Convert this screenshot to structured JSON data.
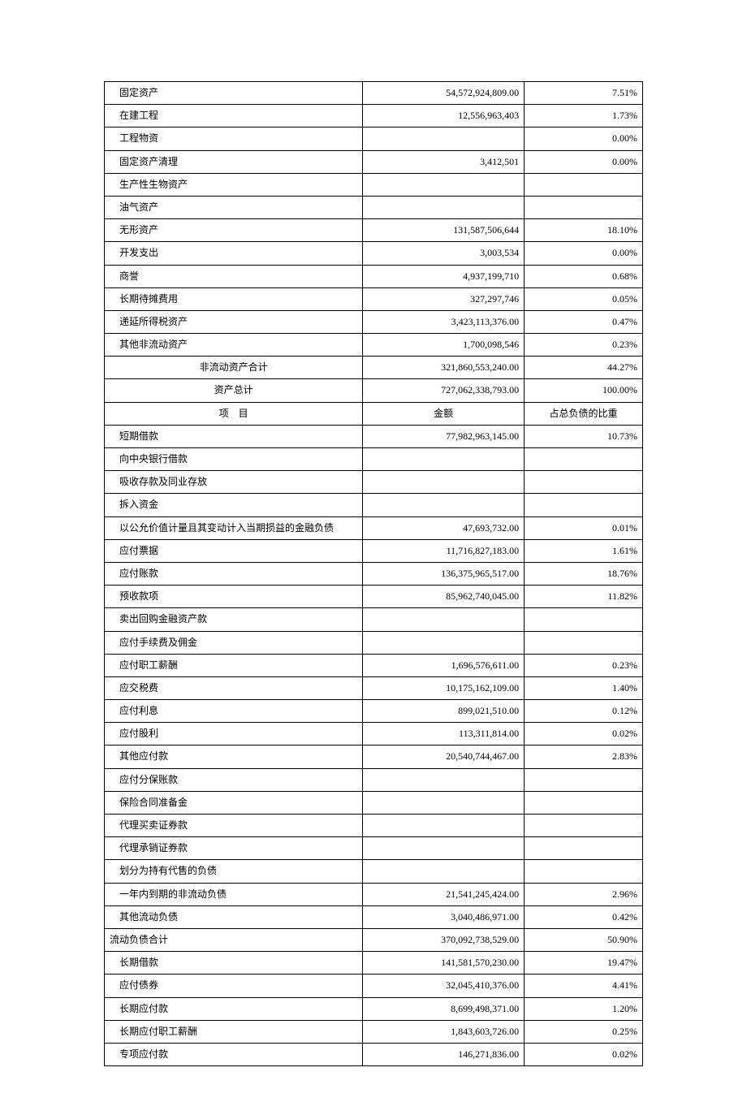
{
  "table": {
    "columns": {
      "item_width": "48%",
      "amount_width": "30%",
      "percent_width": "22%"
    },
    "rows": [
      {
        "item": "固定资产",
        "amount": "54,572,924,809.00",
        "percent": "7.51%",
        "indent": true
      },
      {
        "item": "在建工程",
        "amount": "12,556,963,403",
        "percent": "1.73%",
        "indent": true
      },
      {
        "item": "工程物资",
        "amount": "",
        "percent": "0.00%",
        "indent": true
      },
      {
        "item": "固定资产清理",
        "amount": "3,412,501",
        "percent": "0.00%",
        "indent": true
      },
      {
        "item": "生产性生物资产",
        "amount": "",
        "percent": "",
        "indent": true
      },
      {
        "item": "油气资产",
        "amount": "",
        "percent": "",
        "indent": true
      },
      {
        "item": "无形资产",
        "amount": "131,587,506,644",
        "percent": "18.10%",
        "indent": true
      },
      {
        "item": "开发支出",
        "amount": "3,003,534",
        "percent": "0.00%",
        "indent": true
      },
      {
        "item": "商誉",
        "amount": "4,937,199,710",
        "percent": "0.68%",
        "indent": true
      },
      {
        "item": "长期待摊费用",
        "amount": "327,297,746",
        "percent": "0.05%",
        "indent": true
      },
      {
        "item": "递延所得税资产",
        "amount": "3,423,113,376.00",
        "percent": "0.47%",
        "indent": true
      },
      {
        "item": "其他非流动资产",
        "amount": "1,700,098,546",
        "percent": "0.23%",
        "indent": true
      },
      {
        "item": "非流动资产合计",
        "amount": "321,860,553,240.00",
        "percent": "44.27%",
        "center": true
      },
      {
        "item": "资产总计",
        "amount": "727,062,338,793.00",
        "percent": "100.00%",
        "center": true
      },
      {
        "item": "项　目",
        "amount": "金额",
        "percent": "占总负债的比重",
        "header": true
      },
      {
        "item": "短期借款",
        "amount": "77,982,963,145.00",
        "percent": "10.73%",
        "indent": true
      },
      {
        "item": "向中央银行借款",
        "amount": "",
        "percent": "",
        "indent": true
      },
      {
        "item": "吸收存款及同业存放",
        "amount": "",
        "percent": "",
        "indent": true
      },
      {
        "item": "拆入资金",
        "amount": "",
        "percent": "",
        "indent": true
      },
      {
        "item": "以公允价值计量且其变动计入当期损益的金融负债",
        "amount": "47,693,732.00",
        "percent": "0.01%",
        "indent": true
      },
      {
        "item": "应付票据",
        "amount": "11,716,827,183.00",
        "percent": "1.61%",
        "indent": true
      },
      {
        "item": "应付账款",
        "amount": "136,375,965,517.00",
        "percent": "18.76%",
        "indent": true
      },
      {
        "item": "预收款项",
        "amount": "85,962,740,045.00",
        "percent": "11.82%",
        "indent": true
      },
      {
        "item": "卖出回购金融资产款",
        "amount": "",
        "percent": "",
        "indent": true
      },
      {
        "item": "应付手续费及佣金",
        "amount": "",
        "percent": "",
        "indent": true
      },
      {
        "item": "应付职工薪酬",
        "amount": "1,696,576,611.00",
        "percent": "0.23%",
        "indent": true
      },
      {
        "item": "应交税费",
        "amount": "10,175,162,109.00",
        "percent": "1.40%",
        "indent": true
      },
      {
        "item": "应付利息",
        "amount": "899,021,510.00",
        "percent": "0.12%",
        "indent": true
      },
      {
        "item": "应付股利",
        "amount": "113,311,814.00",
        "percent": "0.02%",
        "indent": true
      },
      {
        "item": "其他应付款",
        "amount": "20,540,744,467.00",
        "percent": "2.83%",
        "indent": true
      },
      {
        "item": "应付分保账款",
        "amount": "",
        "percent": "",
        "indent": true
      },
      {
        "item": "保险合同准备金",
        "amount": "",
        "percent": "",
        "indent": true
      },
      {
        "item": "代理买卖证券款",
        "amount": "",
        "percent": "",
        "indent": true
      },
      {
        "item": "代理承销证券款",
        "amount": "",
        "percent": "",
        "indent": true
      },
      {
        "item": "划分为持有代售的负债",
        "amount": "",
        "percent": "",
        "indent": true
      },
      {
        "item": "一年内到期的非流动负债",
        "amount": "21,541,245,424.00",
        "percent": "2.96%",
        "indent": true
      },
      {
        "item": "其他流动负债",
        "amount": "3,040,486,971.00",
        "percent": "0.42%",
        "indent": true
      },
      {
        "item": "流动负债合计",
        "amount": "370,092,738,529.00",
        "percent": "50.90%",
        "noindent": true
      },
      {
        "item": "长期借款",
        "amount": "141,581,570,230.00",
        "percent": "19.47%",
        "indent": true
      },
      {
        "item": "应付债券",
        "amount": "32,045,410,376.00",
        "percent": "4.41%",
        "indent": true
      },
      {
        "item": "长期应付款",
        "amount": "8,699,498,371.00",
        "percent": "1.20%",
        "indent": true
      },
      {
        "item": "长期应付职工薪酬",
        "amount": "1,843,603,726.00",
        "percent": "0.25%",
        "indent": true
      },
      {
        "item": "专项应付款",
        "amount": "146,271,836.00",
        "percent": "0.02%",
        "indent": true
      }
    ]
  },
  "style": {
    "font_family": "SimSun",
    "font_size": 12,
    "border_color": "#000000",
    "background_color": "#ffffff",
    "text_color": "#000000"
  }
}
